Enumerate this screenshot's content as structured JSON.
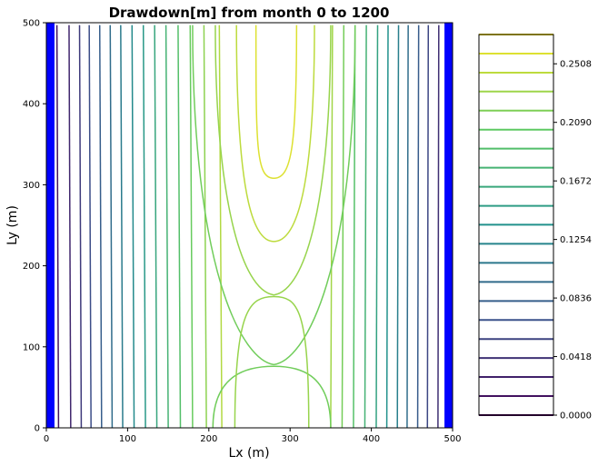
{
  "chart_data": {
    "type": "contour",
    "title": "Drawdown[m] from month 0 to 1200",
    "xlabel": "Lx (m)",
    "ylabel": "Ly (m)",
    "xlim": [
      0,
      500
    ],
    "ylim": [
      0,
      500
    ],
    "xticks": [
      "0",
      "100",
      "200",
      "300",
      "400",
      "500"
    ],
    "yticks": [
      "0",
      "100",
      "200",
      "300",
      "400",
      "500"
    ],
    "boundary_color": "#0000ff",
    "boundary_bands": [
      [
        0,
        10
      ],
      [
        490,
        500
      ]
    ],
    "well_x": 280,
    "colorbar": {
      "min": 0.0,
      "max": 0.2717,
      "ticks": [
        "0.0000",
        "0.0418",
        "0.0836",
        "0.1254",
        "0.1672",
        "0.2090",
        "0.2508"
      ]
    },
    "contour_levels": [
      0.0,
      0.0136,
      0.0272,
      0.0408,
      0.0543,
      0.0679,
      0.0815,
      0.0951,
      0.1087,
      0.1223,
      0.1359,
      0.1494,
      0.163,
      0.1766,
      0.1902,
      0.2038,
      0.2174,
      0.231,
      0.2445,
      0.2581,
      0.2717
    ],
    "left_lines_x": [
      15,
      30,
      43,
      55,
      68,
      81,
      94,
      108,
      122,
      136,
      150,
      165,
      180,
      197,
      216
    ],
    "right_lines_x": [
      482,
      469,
      457,
      444,
      432,
      419,
      406,
      392,
      378,
      364,
      350
    ],
    "closed_contours": [
      {
        "bottom_x": [
          205,
          350
        ],
        "apex_y": 76,
        "top_x": [
          180,
          380
        ]
      },
      {
        "bottom_x": [
          232,
          323
        ],
        "apex_y": 162,
        "top_x": [
          208,
          350
        ]
      },
      {
        "apex_y": 230,
        "top_x": [
          234,
          330
        ]
      },
      {
        "apex_y": 308,
        "top_x": [
          258,
          308
        ]
      }
    ]
  }
}
